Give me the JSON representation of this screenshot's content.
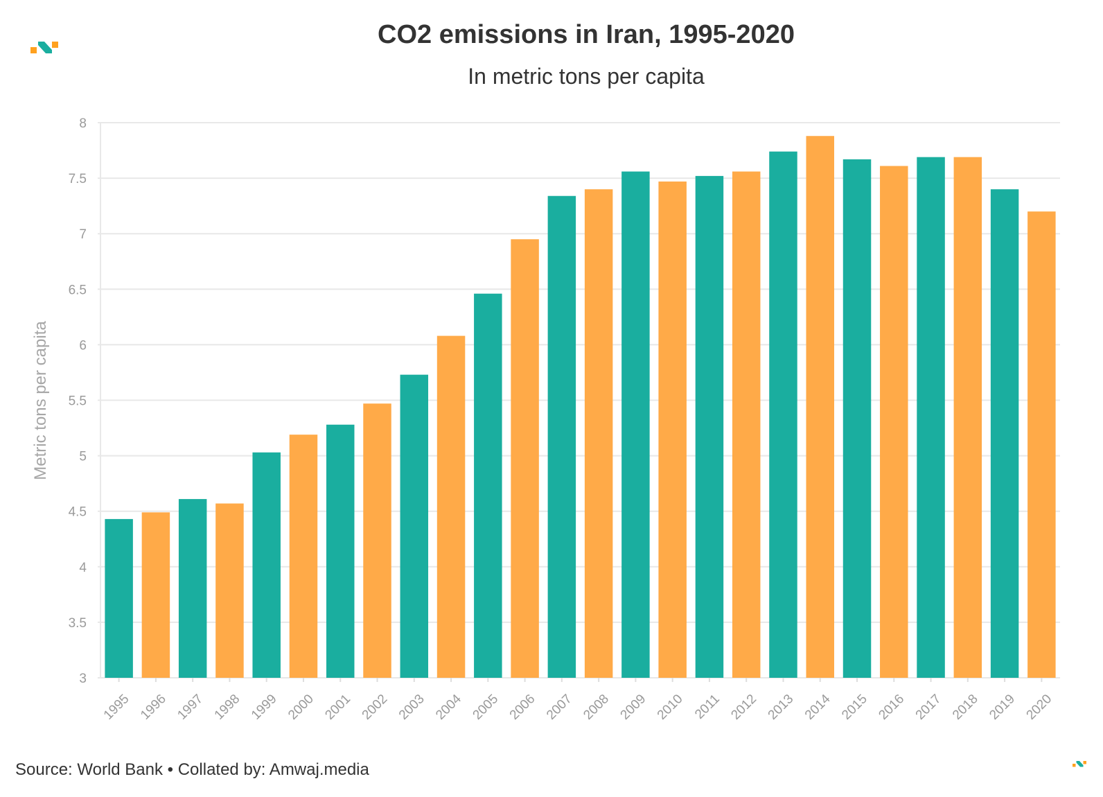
{
  "title": "CO2 emissions in Iran, 1995-2020",
  "subtitle": "In metric tons per capita",
  "source": "Source: World Bank • Collated by: Amwaj.media",
  "colors": {
    "teal": "#1AAE9F",
    "orange": "#FFAA48",
    "logo_teal": "#1AAE9F",
    "logo_orange": "#FFA11F"
  },
  "chart_data": {
    "type": "bar",
    "categories": [
      "1995",
      "1996",
      "1997",
      "1998",
      "1999",
      "2000",
      "2001",
      "2002",
      "2003",
      "2004",
      "2005",
      "2006",
      "2007",
      "2008",
      "2009",
      "2010",
      "2011",
      "2012",
      "2013",
      "2014",
      "2015",
      "2016",
      "2017",
      "2018",
      "2019",
      "2020"
    ],
    "values": [
      4.43,
      4.49,
      4.61,
      4.57,
      5.03,
      5.19,
      5.28,
      5.47,
      5.73,
      6.08,
      6.46,
      6.95,
      7.34,
      7.4,
      7.56,
      7.47,
      7.52,
      7.56,
      7.74,
      7.88,
      7.67,
      7.61,
      7.69,
      7.69,
      7.4,
      7.2
    ],
    "ylabel": "Metric tons per capita",
    "xlabel": "",
    "ylim": [
      3,
      8
    ],
    "yticks": [
      "3",
      "3.5",
      "4",
      "4.5",
      "5",
      "5.5",
      "6",
      "6.5",
      "7",
      "7.5",
      "8"
    ],
    "bar_colors": "alternating teal / orange",
    "grid": true,
    "legend": "none"
  }
}
